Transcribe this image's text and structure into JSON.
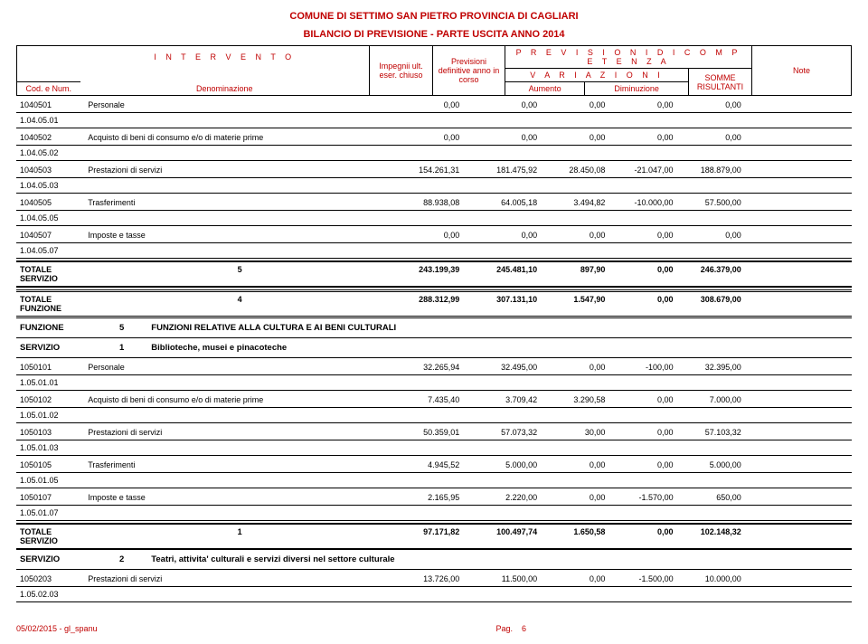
{
  "header": {
    "title1": "COMUNE DI SETTIMO SAN PIETRO PROVINCIA DI CAGLIARI",
    "title2": "BILANCIO DI PREVISIONE - PARTE USCITA ANNO 2014",
    "intervento": "I N T E R V E N T O",
    "cod": "Cod. e Num.",
    "denom": "Denominazione",
    "eser": "Impegnii ult. eser. chiuso",
    "prev": "Previsioni definitive anno in corso",
    "prevcomp": "P R E V I S I O N I  D I  C O M P E T E N Z A",
    "variazioni": "V A R I A Z I O N I",
    "aumento": "Aumento",
    "diminuzione": "Diminuzione",
    "somme": "SOMME RISULTANTI",
    "note": "Note"
  },
  "rows": [
    {
      "code": "1040501",
      "desc": "Personale",
      "v": [
        "0,00",
        "0,00",
        "0,00",
        "0,00",
        "0,00"
      ],
      "sub": "1.04.05.01"
    },
    {
      "code": "1040502",
      "desc": "Acquisto di beni di consumo e/o di materie prime",
      "v": [
        "0,00",
        "0,00",
        "0,00",
        "0,00",
        "0,00"
      ],
      "sub": "1.04.05.02"
    },
    {
      "code": "1040503",
      "desc": "Prestazioni di servizi",
      "v": [
        "154.261,31",
        "181.475,92",
        "28.450,08",
        "-21.047,00",
        "188.879,00"
      ],
      "sub": "1.04.05.03"
    },
    {
      "code": "1040505",
      "desc": "Trasferimenti",
      "v": [
        "88.938,08",
        "64.005,18",
        "3.494,82",
        "-10.000,00",
        "57.500,00"
      ],
      "sub": "1.04.05.05"
    },
    {
      "code": "1040507",
      "desc": "Imposte e tasse",
      "v": [
        "0,00",
        "0,00",
        "0,00",
        "0,00",
        "0,00"
      ],
      "sub": "1.04.05.07"
    }
  ],
  "tot_serv_5": {
    "label": "TOTALE SERVIZIO",
    "num": "5",
    "v": [
      "243.199,39",
      "245.481,10",
      "897,90",
      "0,00",
      "246.379,00"
    ]
  },
  "tot_fun_4": {
    "label": "TOTALE FUNZIONE",
    "num": "4",
    "v": [
      "288.312,99",
      "307.131,10",
      "1.547,90",
      "0,00",
      "308.679,00"
    ]
  },
  "funzione5": {
    "label": "FUNZIONE",
    "num": "5",
    "text": "FUNZIONI RELATIVE ALLA CULTURA E AI BENI CULTURALI"
  },
  "servizio1": {
    "label": "SERVIZIO",
    "num": "1",
    "text": "Biblioteche, musei e pinacoteche"
  },
  "rows2": [
    {
      "code": "1050101",
      "desc": "Personale",
      "v": [
        "32.265,94",
        "32.495,00",
        "0,00",
        "-100,00",
        "32.395,00"
      ],
      "sub": "1.05.01.01"
    },
    {
      "code": "1050102",
      "desc": "Acquisto di beni di consumo e/o di materie prime",
      "v": [
        "7.435,40",
        "3.709,42",
        "3.290,58",
        "0,00",
        "7.000,00"
      ],
      "sub": "1.05.01.02"
    },
    {
      "code": "1050103",
      "desc": "Prestazioni di servizi",
      "v": [
        "50.359,01",
        "57.073,32",
        "30,00",
        "0,00",
        "57.103,32"
      ],
      "sub": "1.05.01.03"
    },
    {
      "code": "1050105",
      "desc": "Trasferimenti",
      "v": [
        "4.945,52",
        "5.000,00",
        "0,00",
        "0,00",
        "5.000,00"
      ],
      "sub": "1.05.01.05"
    },
    {
      "code": "1050107",
      "desc": "Imposte e tasse",
      "v": [
        "2.165,95",
        "2.220,00",
        "0,00",
        "-1.570,00",
        "650,00"
      ],
      "sub": "1.05.01.07"
    }
  ],
  "tot_serv_1": {
    "label": "TOTALE SERVIZIO",
    "num": "1",
    "v": [
      "97.171,82",
      "100.497,74",
      "1.650,58",
      "0,00",
      "102.148,32"
    ]
  },
  "servizio2": {
    "label": "SERVIZIO",
    "num": "2",
    "text": "Teatri, attivita' culturali e servizi diversi nel settore culturale"
  },
  "rows3": [
    {
      "code": "1050203",
      "desc": "Prestazioni di servizi",
      "v": [
        "13.726,00",
        "11.500,00",
        "0,00",
        "-1.500,00",
        "10.000,00"
      ],
      "sub": "1.05.02.03"
    }
  ],
  "footer": {
    "left": "05/02/2015 - gl_spanu",
    "pag": "Pag.",
    "num": "6"
  }
}
